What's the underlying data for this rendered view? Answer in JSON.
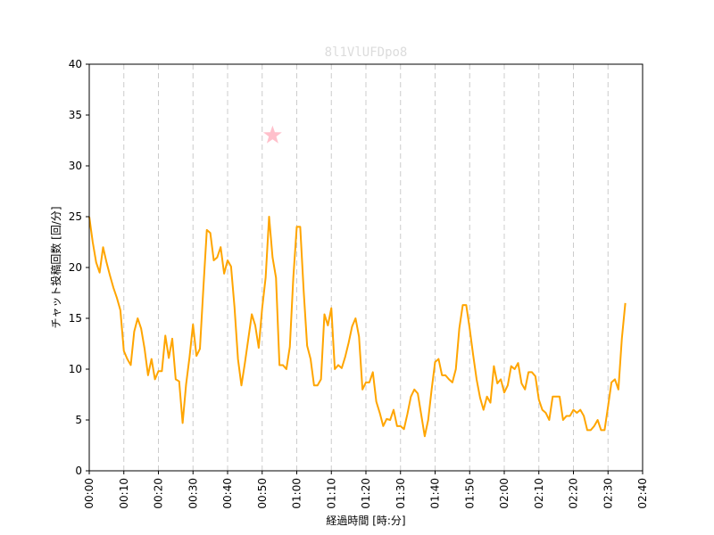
{
  "chart_data": {
    "type": "line",
    "title": "8l1VlUFDpo8",
    "xlabel": "経過時間 [時:分]",
    "ylabel": "チャット投稿回数 [回/分]",
    "ylim": [
      0,
      40
    ],
    "yticks": [
      0,
      5,
      10,
      15,
      20,
      25,
      30,
      35,
      40
    ],
    "xlim": [
      "00:00",
      "02:40"
    ],
    "xticks": [
      "00:00",
      "00:10",
      "00:20",
      "00:30",
      "00:40",
      "00:50",
      "01:00",
      "01:10",
      "01:20",
      "01:30",
      "01:40",
      "01:50",
      "02:00",
      "02:10",
      "02:20",
      "02:30",
      "02:40"
    ],
    "grid": "vertical dashed",
    "colors": {
      "line": "#FFA500",
      "marker": "#FFC0CB",
      "title": "#DCDCDC",
      "grid": "#CCCCCC"
    },
    "series": [
      {
        "x": [
          "00:00",
          "00:01",
          "00:02",
          "00:03",
          "00:04",
          "00:05",
          "00:06",
          "00:07",
          "00:08",
          "00:09",
          "00:10",
          "00:11",
          "00:12",
          "00:13",
          "00:14",
          "00:15",
          "00:16",
          "00:17",
          "00:18",
          "00:19",
          "00:20",
          "00:21",
          "00:22",
          "00:23",
          "00:24",
          "00:25",
          "00:26",
          "00:27",
          "00:28",
          "00:29",
          "00:30",
          "00:31",
          "00:32",
          "00:33",
          "00:34",
          "00:35",
          "00:36",
          "00:37",
          "00:38",
          "00:39",
          "00:40",
          "00:41",
          "00:42",
          "00:43",
          "00:44",
          "00:45",
          "00:46",
          "00:47",
          "00:48",
          "00:49",
          "00:50",
          "00:51",
          "00:52",
          "00:53",
          "00:54",
          "00:55",
          "00:56",
          "00:57",
          "00:58",
          "00:59",
          "01:00",
          "01:01",
          "01:02",
          "01:03",
          "01:04",
          "01:05",
          "01:06",
          "01:07",
          "01:08",
          "01:09",
          "01:10",
          "01:11",
          "01:12",
          "01:13",
          "01:14",
          "01:15",
          "01:16",
          "01:17",
          "01:18",
          "01:19",
          "01:20",
          "01:21",
          "01:22",
          "01:23",
          "01:24",
          "01:25",
          "01:26",
          "01:27",
          "01:28",
          "01:29",
          "01:30",
          "01:31",
          "01:32",
          "01:33",
          "01:34",
          "01:35",
          "01:36",
          "01:37",
          "01:38",
          "01:39",
          "01:40",
          "01:41",
          "01:42",
          "01:43",
          "01:44",
          "01:45",
          "01:46",
          "01:47",
          "01:48",
          "01:49",
          "01:50",
          "01:51",
          "01:52",
          "01:53",
          "01:54",
          "01:55",
          "01:56",
          "01:57",
          "01:58",
          "01:59",
          "02:00",
          "02:01",
          "02:02",
          "02:03",
          "02:04",
          "02:05",
          "02:06",
          "02:07",
          "02:08",
          "02:09",
          "02:10",
          "02:11",
          "02:12",
          "02:13",
          "02:14",
          "02:15",
          "02:16",
          "02:17",
          "02:18",
          "02:19",
          "02:20",
          "02:21",
          "02:22",
          "02:23",
          "02:24",
          "02:25",
          "02:26",
          "02:27",
          "02:28",
          "02:29",
          "02:30",
          "02:31",
          "02:32",
          "02:33",
          "02:34",
          "02:35"
        ],
        "values": [
          25,
          22.5,
          20.5,
          19.5,
          22,
          20.5,
          19.2,
          18,
          17,
          15.8,
          11.8,
          11,
          10.4,
          13.7,
          15,
          14,
          12,
          9.4,
          11,
          9,
          9.8,
          9.8,
          13.3,
          11.1,
          13,
          9,
          8.8,
          4.7,
          8.5,
          11.2,
          14.4,
          11.3,
          12,
          18,
          23.7,
          23.4,
          20.7,
          21,
          22,
          19.4,
          20.7,
          20.1,
          16.1,
          11,
          8.4,
          10.6,
          13,
          15.4,
          14.3,
          12.1,
          16,
          19,
          25,
          21,
          19,
          10.4,
          10.4,
          10,
          12.2,
          19,
          24,
          24,
          17.7,
          12.3,
          11,
          8.4,
          8.4,
          9,
          15.4,
          14.3,
          16,
          10,
          10.4,
          10.1,
          11.2,
          12.6,
          14.2,
          15,
          13.2,
          8,
          8.7,
          8.7,
          9.7,
          6.8,
          5.7,
          4.4,
          5.1,
          5,
          6,
          4.4,
          4.4,
          4.1,
          5.6,
          7.3,
          8,
          7.6,
          5.5,
          3.4,
          5,
          8,
          10.7,
          11,
          9.4,
          9.4,
          9,
          8.7,
          10,
          14,
          16.3,
          16.3,
          14,
          11.4,
          9,
          7.2,
          6,
          7.3,
          6.7,
          10.3,
          8.6,
          9,
          7.7,
          8.4,
          10.3,
          10,
          10.6,
          8.6,
          8,
          9.7,
          9.7,
          9.3,
          7,
          6,
          5.7,
          5,
          7.3,
          7.3,
          7.3,
          5,
          5.4,
          5.4,
          6,
          5.7,
          6,
          5.4,
          4,
          4,
          4.4,
          5,
          4,
          4,
          6.3,
          8.7,
          9,
          8,
          13,
          16.5
        ]
      }
    ],
    "annotations": [
      {
        "type": "star-marker",
        "x": "00:53",
        "y": 33
      }
    ]
  }
}
